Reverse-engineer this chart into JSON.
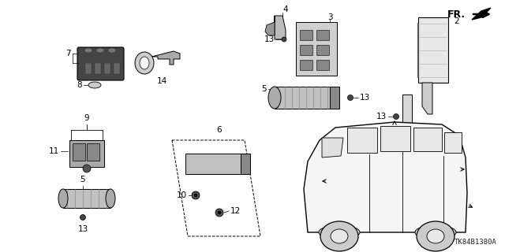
{
  "bg_color": "#ffffff",
  "diagram_code": "TK84B1380A",
  "label_fontsize": 7.5,
  "diagram_code_fontsize": 6.5
}
